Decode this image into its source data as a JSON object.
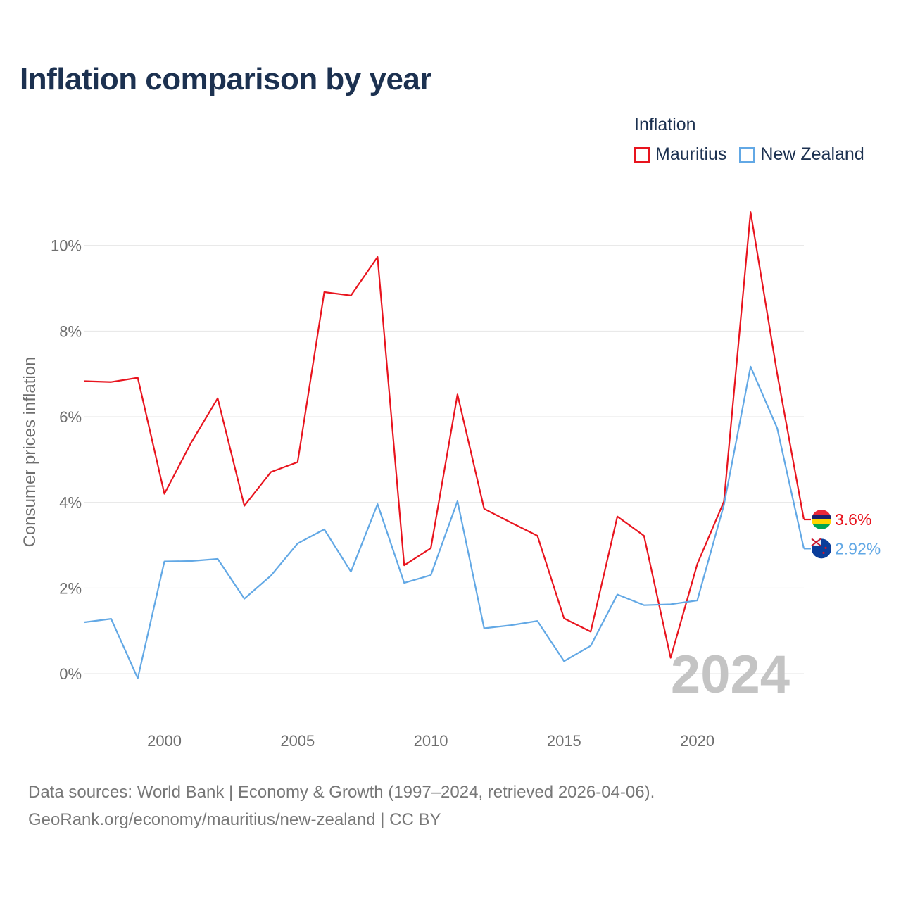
{
  "title": "Inflation comparison by year",
  "legend": {
    "title": "Inflation",
    "items": [
      {
        "name": "Mauritius",
        "color": "#e8141e"
      },
      {
        "name": "New Zealand",
        "color": "#62a8e5"
      }
    ]
  },
  "source_line1": "Data sources: World Bank | Economy & Growth (1997–2024, retrieved 2026-04-06).",
  "source_line2": "GeoRank.org/economy/mauritius/new-zealand | CC BY",
  "chart_data": {
    "type": "line",
    "title": "Inflation comparison by year",
    "ylabel": "Consumer prices inflation",
    "xlabel": "",
    "year_watermark": "2024",
    "xlim": [
      1997,
      2024
    ],
    "ylim": [
      -1.2,
      10.8
    ],
    "x_ticks": [
      2000,
      2005,
      2010,
      2015,
      2020
    ],
    "y_ticks": [
      0,
      2,
      4,
      6,
      8,
      10
    ],
    "y_tick_labels": [
      "0%",
      "2%",
      "4%",
      "6%",
      "8%",
      "10%"
    ],
    "x": [
      1997,
      1998,
      1999,
      2000,
      2001,
      2002,
      2003,
      2004,
      2005,
      2006,
      2007,
      2008,
      2009,
      2010,
      2011,
      2012,
      2013,
      2014,
      2015,
      2016,
      2017,
      2018,
      2019,
      2020,
      2021,
      2022,
      2023,
      2024
    ],
    "series": [
      {
        "name": "Mauritius",
        "color": "#e8141e",
        "end_label": "3.6%",
        "values": [
          6.83,
          6.81,
          6.91,
          4.2,
          5.39,
          6.43,
          3.92,
          4.71,
          4.94,
          8.91,
          8.83,
          9.73,
          2.53,
          2.93,
          6.52,
          3.85,
          3.53,
          3.22,
          1.29,
          0.98,
          3.67,
          3.22,
          0.37,
          2.56,
          4.02,
          10.78,
          7.0,
          3.6
        ]
      },
      {
        "name": "New Zealand",
        "color": "#62a8e5",
        "end_label": "2.92%",
        "values": [
          1.2,
          1.28,
          -0.11,
          2.62,
          2.63,
          2.68,
          1.75,
          2.29,
          3.04,
          3.37,
          2.38,
          3.96,
          2.12,
          2.3,
          4.03,
          1.06,
          1.13,
          1.23,
          0.29,
          0.65,
          1.85,
          1.6,
          1.62,
          1.71,
          3.94,
          7.17,
          5.73,
          2.92
        ]
      }
    ]
  }
}
